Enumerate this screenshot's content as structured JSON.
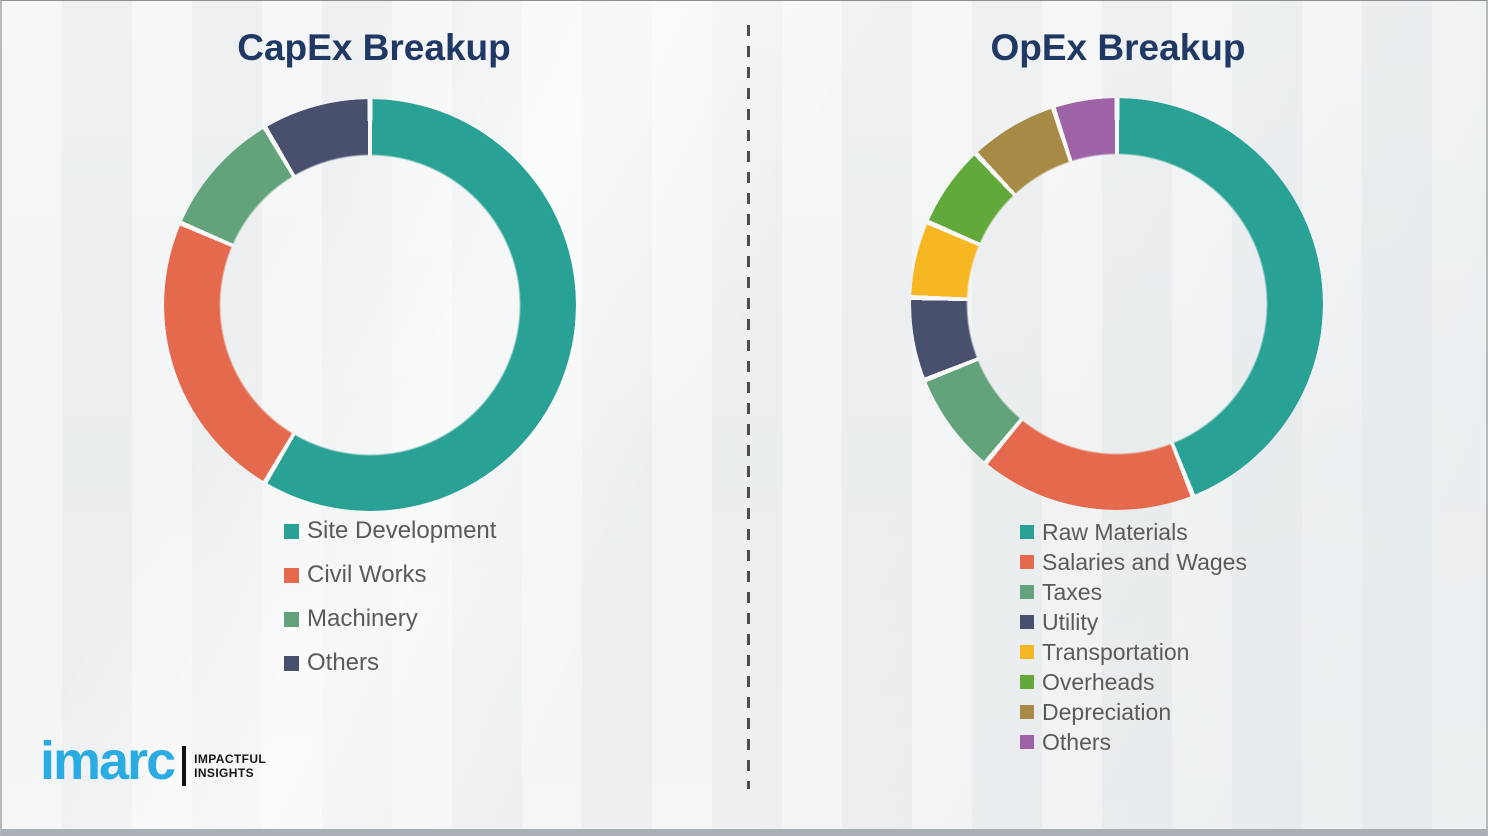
{
  "chart_data": [
    {
      "type": "pie",
      "subtype": "donut",
      "title": "CapEx Breakup",
      "labels": [
        "Site Development",
        "Civil Works",
        "Machinery",
        "Others"
      ],
      "values": [
        58.5,
        23,
        10,
        8.5
      ],
      "colors": [
        "#29a295",
        "#e56a4d",
        "#63a37c",
        "#49506e"
      ],
      "start_angle_deg": 0,
      "direction": "clockwise",
      "legend_position": "below"
    },
    {
      "type": "pie",
      "subtype": "donut",
      "title": "OpEx Breakup",
      "labels": [
        "Raw Materials",
        "Salaries and Wages",
        "Taxes",
        "Utility",
        "Transportation",
        "Overheads",
        "Depreciation",
        "Others"
      ],
      "values": [
        44,
        17,
        8,
        6.5,
        6,
        6.5,
        7,
        5
      ],
      "colors": [
        "#29a295",
        "#e56a4d",
        "#63a37c",
        "#49506e",
        "#f6b723",
        "#62a93c",
        "#a68a45",
        "#9d63a6"
      ],
      "start_angle_deg": 0,
      "direction": "clockwise",
      "legend_position": "below"
    }
  ],
  "branding": {
    "wordmark": "imarc",
    "tagline_line1": "IMPACTFUL",
    "tagline_line2": "INSIGHTS",
    "wordmark_color": "#2aabe2"
  },
  "style": {
    "title_color": "#203864",
    "legend_text_color": "#5a5a5c",
    "background_color": "#eef0f1",
    "segment_gap_color": "#f8f8f6",
    "divider_color": "#4d4d4d"
  }
}
